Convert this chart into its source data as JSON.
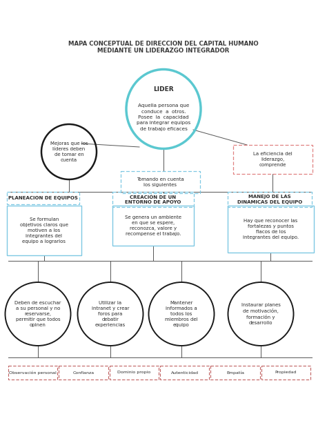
{
  "title_line1": "MAPA CONCEPTUAL DE DIRECCION DEL CAPITAL HUMANO",
  "title_line2": "MEDIANTE UN LIDERAZGO INTEGRADOR",
  "lider_title": "LIDER",
  "lider_text": "Aquella persona que\nconduce  a  otros.\nPosee  la  capacidad\npara integrar equipos\nde trabajo eficaces",
  "left_circle_text": "Mejoras que los\nlíderes deben\nde tomar en\ncuenta",
  "center_box_text": "Tomando en cuenta\nlos siguientes",
  "right_box_text": "La eficiencia del\nliderazgo,\ncomprende",
  "level2_boxes": [
    {
      "label": "PLANEACION DE EQUIPOS",
      "detail": "Se formulan\nobjetivos claros que\nmotiven a los\nintegrantes del\nequipo a lograrlos"
    },
    {
      "label": "CREACIÓN DE UN\nENTORNO DE APOYO",
      "detail": "Se genera un ambiente\nen que se espere,\nreconozca, valore y\nrecompense el trabajo."
    },
    {
      "label": "MANEJO DE LAS\nDINAMICAS DEL EQUIPO",
      "detail": "Hay que reconocer las\nfortalezas y puntos\nflacos de los\nintegrantes del equipo."
    }
  ],
  "oval_texts": [
    "Deben de escuchar\na su personal y no\nreservarse,\npermitir que todos\nopinen",
    "Utilizar la\nintranet y crear\nforos para\ndebatir\nexperiencias",
    "Mantener\ninformados a\ntodos los\nmiembros del\nequipo",
    "Instaurar planes\nde motivación,\nformación y\ndesarrollo"
  ],
  "bottom_labels": [
    "Observación personal",
    "Confianza",
    "Dominio propio",
    "Autenticidad",
    "Empatía",
    "Propiedad"
  ],
  "colors": {
    "background": "#ffffff",
    "title": "#3a3a3a",
    "lider_ellipse": "#5bc8d0",
    "left_circle": "#1a1a1a",
    "center_box_dashed": "#7ec8e3",
    "right_box_dashed": "#e08080",
    "level2_label_dashed": "#7ec8e3",
    "level2_detail_solid": "#7ec8e3",
    "oval_stroke": "#1a1a1a",
    "bottom_label_border": "#c06060",
    "line_color": "#555555"
  }
}
